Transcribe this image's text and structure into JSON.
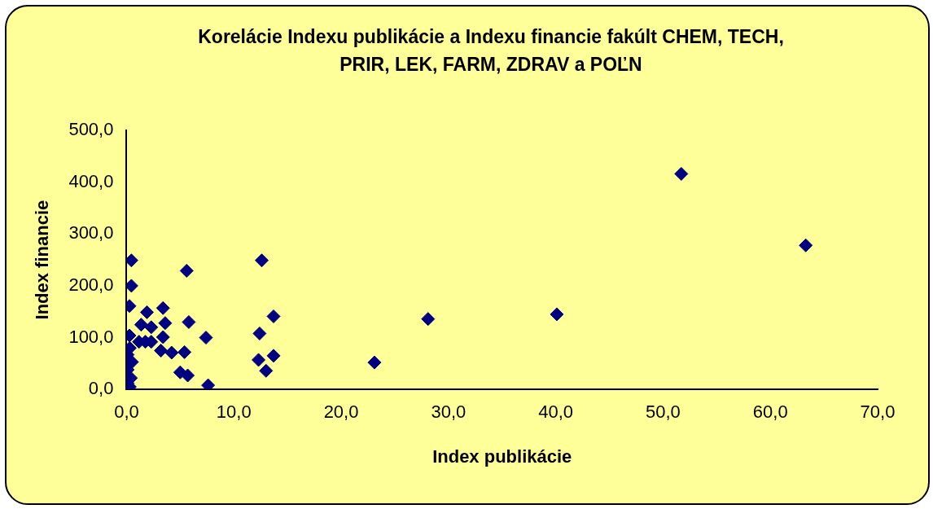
{
  "chart_data": {
    "type": "scatter",
    "title": "Korelácie Indexu publikácie a Indexu financie fakúlt CHEM, TECH, PRIR, LEK, FARM, ZDRAV a POĽN",
    "xlabel": "Index publikácie",
    "ylabel": "Index financie",
    "x": [
      0.45,
      5.6,
      0.45,
      0.27,
      1.9,
      3.4,
      1.36,
      2.3,
      3.6,
      5.8,
      0.27,
      3.4,
      7.4,
      1.16,
      1.75,
      2.3,
      3.2,
      4.2,
      5.4,
      5.0,
      5.7,
      7.6,
      0.1,
      0.3,
      0.5,
      0.1,
      0.4,
      0.1,
      0.3,
      12.6,
      13.7,
      12.4,
      13.7,
      12.3,
      13.0,
      23.1,
      28.1,
      40.1,
      51.7,
      63.3
    ],
    "values": [
      249,
      229,
      200,
      161,
      149,
      157,
      125,
      120,
      128,
      130,
      104,
      101,
      100,
      92,
      92,
      92,
      75,
      71,
      72,
      33,
      27,
      8,
      67,
      80,
      53,
      38,
      22,
      12,
      5,
      249,
      141,
      108,
      65,
      57,
      36,
      52,
      136,
      145,
      416,
      278
    ],
    "color": "#000080",
    "marker": "diamond",
    "grid": false,
    "legend": false,
    "xlim": [
      0,
      70
    ],
    "xticks": [
      {
        "value": 0,
        "label": "0,0"
      },
      {
        "value": 10,
        "label": "10,0"
      },
      {
        "value": 20,
        "label": "20,0"
      },
      {
        "value": 30,
        "label": "30,0"
      },
      {
        "value": 40,
        "label": "40,0"
      },
      {
        "value": 50,
        "label": "50,0"
      },
      {
        "value": 60,
        "label": "60,0"
      },
      {
        "value": 70,
        "label": "70,0"
      }
    ],
    "ylim": [
      0,
      500
    ],
    "yticks": [
      {
        "value": 0,
        "label": "0,0"
      },
      {
        "value": 100,
        "label": "100,0"
      },
      {
        "value": 200,
        "label": "200,0"
      },
      {
        "value": 300,
        "label": "300,0"
      },
      {
        "value": 400,
        "label": "400,0"
      },
      {
        "value": 500,
        "label": "500,0"
      }
    ]
  }
}
